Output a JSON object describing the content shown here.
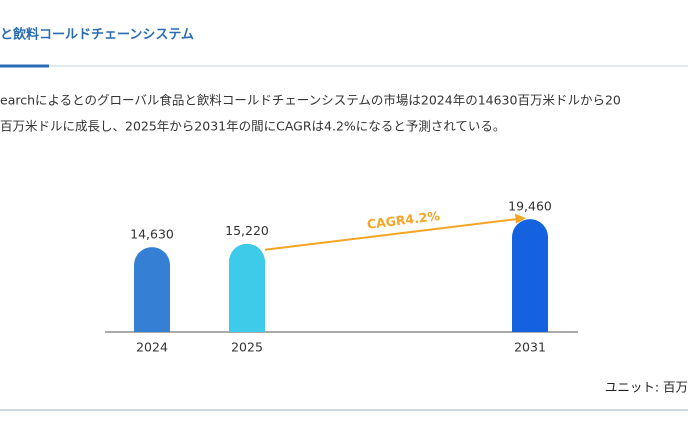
{
  "header": {
    "title": "と飲料コールドチェーンシステム"
  },
  "paragraph": [
    "earchによるとのグローバル食品と飲料コールドチェーンシステムの市場は2024年の14630百万米ドルから20",
    "百万米ドルに成長し、2025年から2031年の間にCAGRは4.2%になると予測されている。"
  ],
  "chart_data": {
    "type": "bar",
    "categories": [
      "2024",
      "2025",
      "2031"
    ],
    "values": [
      14630,
      15220,
      19460
    ],
    "value_labels": [
      "14,630",
      "15,220",
      "19,460"
    ],
    "colors": [
      "#3580d4",
      "#3ecbea",
      "#1462e0"
    ],
    "ylim": [
      0,
      20000
    ],
    "annotation": "CAGR4.2%"
  },
  "unit_note": "ユニット: 百万"
}
